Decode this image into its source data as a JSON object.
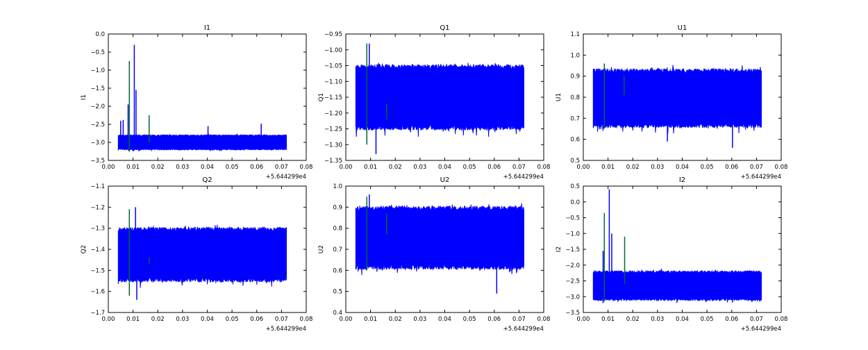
{
  "chart_data": [
    {
      "type": "line",
      "title": "I1",
      "ylabel": "I1",
      "xlim": [
        0,
        0.08
      ],
      "ylim": [
        -3.5,
        0.0
      ],
      "ystep": 0.5,
      "ydec": 1,
      "x_offset_label": "+5.644299e4",
      "x_range": [
        0.004,
        0.072
      ],
      "band": [
        -3.2,
        -2.8
      ],
      "blue_spikes": [
        [
          0.005,
          -2.4,
          -3.0
        ],
        [
          0.006,
          -2.38,
          -3.0
        ],
        [
          0.008,
          -1.95,
          -3.2
        ],
        [
          0.0105,
          -0.3,
          -3.1
        ],
        [
          0.0112,
          -1.55,
          -3.0
        ],
        [
          0.0403,
          -2.55,
          -2.9
        ],
        [
          0.0618,
          -2.48,
          -2.9
        ]
      ],
      "green_spikes": [
        [
          0.0085,
          -0.75,
          -3.25
        ],
        [
          0.0165,
          -2.25,
          -3.0
        ]
      ],
      "colors": {
        "main": "#0000ff",
        "secondary": "#006633"
      }
    },
    {
      "type": "line",
      "title": "Q1",
      "ylabel": "Q1",
      "xlim": [
        0,
        0.08
      ],
      "ylim": [
        -1.35,
        -0.95
      ],
      "ystep": 0.05,
      "ydec": 2,
      "x_offset_label": "+5.644299e4",
      "x_range": [
        0.004,
        0.072
      ],
      "band": [
        -1.25,
        -1.05
      ],
      "blue_spikes": [
        [
          0.0095,
          -0.98,
          -1.2
        ],
        [
          0.0122,
          -1.15,
          -1.33
        ]
      ],
      "green_spikes": [
        [
          0.0085,
          -0.98,
          -1.3
        ],
        [
          0.0165,
          -1.17,
          -1.22
        ]
      ],
      "colors": {
        "main": "#0000ff",
        "secondary": "#006633"
      }
    },
    {
      "type": "line",
      "title": "U1",
      "ylabel": "U1",
      "xlim": [
        0,
        0.08
      ],
      "ylim": [
        0.5,
        1.1
      ],
      "ystep": 0.1,
      "ydec": 1,
      "x_offset_label": "+5.644299e4",
      "x_range": [
        0.004,
        0.072
      ],
      "band": [
        0.66,
        0.93
      ],
      "blue_spikes": [
        [
          0.0603,
          0.8,
          0.56
        ],
        [
          0.034,
          0.8,
          0.59
        ]
      ],
      "green_spikes": [
        [
          0.0085,
          0.96,
          0.65
        ],
        [
          0.0165,
          0.9,
          0.81
        ]
      ],
      "colors": {
        "main": "#0000ff",
        "secondary": "#006633"
      }
    },
    {
      "type": "line",
      "title": "Q2",
      "ylabel": "Q2",
      "xlim": [
        0,
        0.08
      ],
      "ylim": [
        -1.7,
        -1.1
      ],
      "ystep": 0.1,
      "ydec": 1,
      "x_offset_label": "+5.644299e4",
      "x_range": [
        0.004,
        0.072
      ],
      "band": [
        -1.55,
        -1.3
      ],
      "blue_spikes": [
        [
          0.011,
          -1.2,
          -1.5
        ],
        [
          0.0115,
          -1.4,
          -1.64
        ]
      ],
      "green_spikes": [
        [
          0.0085,
          -1.21,
          -1.62
        ],
        [
          0.0165,
          -1.44,
          -1.47
        ]
      ],
      "colors": {
        "main": "#0000ff",
        "secondary": "#006633"
      }
    },
    {
      "type": "line",
      "title": "U2",
      "ylabel": "U2",
      "xlim": [
        0,
        0.08
      ],
      "ylim": [
        0.4,
        1.0
      ],
      "ystep": 0.1,
      "ydec": 1,
      "x_offset_label": "+5.644299e4",
      "x_range": [
        0.004,
        0.072
      ],
      "band": [
        0.61,
        0.9
      ],
      "blue_spikes": [
        [
          0.0095,
          0.96,
          0.7
        ],
        [
          0.061,
          0.7,
          0.49
        ]
      ],
      "green_spikes": [
        [
          0.0085,
          0.95,
          0.6
        ],
        [
          0.0165,
          0.87,
          0.77
        ]
      ],
      "colors": {
        "main": "#0000ff",
        "secondary": "#006633"
      }
    },
    {
      "type": "line",
      "title": "I2",
      "ylabel": "I2",
      "xlim": [
        0,
        0.08
      ],
      "ylim": [
        -3.5,
        0.5
      ],
      "ystep": 0.5,
      "ydec": 1,
      "x_offset_label": "+5.644299e4",
      "x_range": [
        0.004,
        0.072
      ],
      "band": [
        -3.1,
        -2.2
      ],
      "blue_spikes": [
        [
          0.0105,
          0.4,
          -2.8
        ],
        [
          0.0115,
          -1.0,
          -2.8
        ],
        [
          0.008,
          -1.55,
          -3.2
        ]
      ],
      "green_spikes": [
        [
          0.0085,
          -0.35,
          -3.15
        ],
        [
          0.0167,
          -1.1,
          -2.6
        ]
      ],
      "colors": {
        "main": "#0000ff",
        "secondary": "#006633"
      }
    }
  ]
}
